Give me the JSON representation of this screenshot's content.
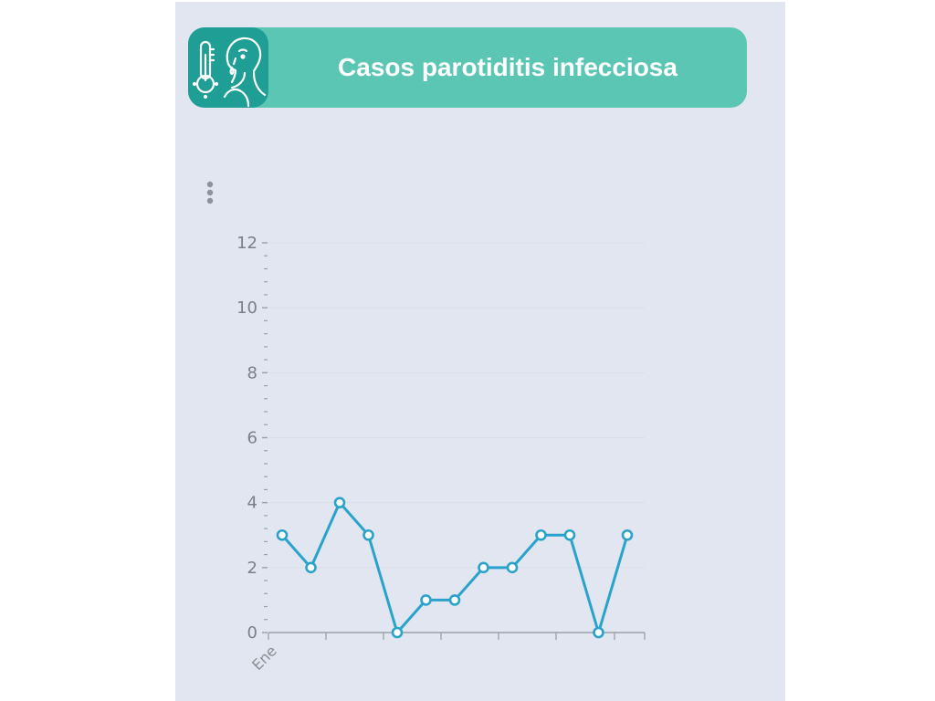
{
  "header": {
    "title": "Casos parotiditis infecciosa",
    "icon": "thermometer-sick-person-icon"
  },
  "menu": {
    "icon": "vertical-ellipsis-icon"
  },
  "colors": {
    "header_bg": "#5cc6b4",
    "icon_bg": "#1e9e94",
    "panel_bg": "#e1e6f0",
    "line": "#2aa3cc"
  },
  "chart_data": {
    "type": "line",
    "x_tick_labels": [
      "Ene"
    ],
    "values": [
      3,
      2,
      4,
      3,
      0,
      1,
      1,
      2,
      2,
      3,
      3,
      0,
      3
    ],
    "ylim": [
      0,
      12
    ],
    "yticks": [
      0,
      2,
      4,
      6,
      8,
      10,
      12
    ],
    "title": "",
    "xlabel": "",
    "ylabel": "",
    "grid": true,
    "legend": "none"
  }
}
